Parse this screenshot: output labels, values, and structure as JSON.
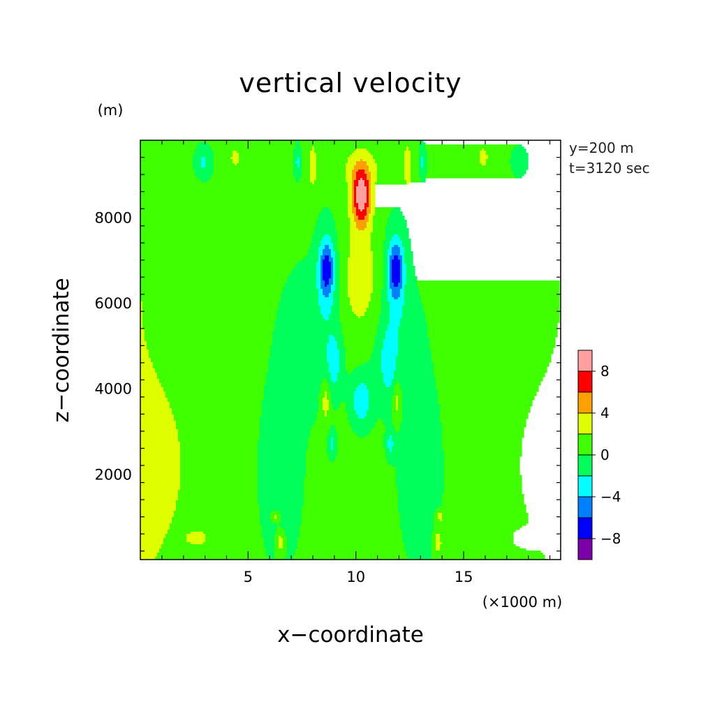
{
  "chart_data": {
    "type": "heatmap",
    "subtype": "filled-contour",
    "title": "vertical velocity",
    "xlabel": "x−coordinate",
    "ylabel": "z−coordinate",
    "x_unit": "(×1000 m)",
    "y_unit": "(m)",
    "annotations": [
      "y=200 m",
      "t=3120 sec"
    ],
    "xlim": [
      0,
      19.5
    ],
    "ylim": [
      0,
      9800
    ],
    "x_ticks": [
      5,
      10,
      15
    ],
    "x_tick_labels": [
      "5",
      "10",
      "15"
    ],
    "y_ticks": [
      2000,
      4000,
      6000,
      8000
    ],
    "y_tick_labels": [
      "2000",
      "4000",
      "6000",
      "8000"
    ],
    "colorbar": {
      "levels": [
        -10,
        -8,
        -6,
        -4,
        -2,
        0,
        2,
        4,
        6,
        8,
        10
      ],
      "labels": [
        "-8",
        "-4",
        "0",
        "4",
        "8"
      ],
      "label_values": [
        -8,
        -4,
        0,
        4,
        8
      ],
      "colors": [
        "#7a00a8",
        "#0000ff",
        "#0080ff",
        "#00ffff",
        "#00ff5a",
        "#40ff00",
        "#dfff00",
        "#ffa000",
        "#ff0000",
        "#ffa0a0"
      ]
    },
    "field": {
      "background": 0.5,
      "features": [
        {
          "kind": "band",
          "x": 0.0,
          "z": 0,
          "sx": 2.6,
          "sz": 9000,
          "amp": 1.5
        },
        {
          "kind": "band",
          "x": 19.5,
          "z": 0,
          "sx": 2.6,
          "sz": 9000,
          "amp": 1.5
        },
        {
          "kind": "blob",
          "x": 0.8,
          "z": 2200,
          "sx": 1.3,
          "sz": 1400,
          "amp": 1.2
        },
        {
          "kind": "blob",
          "x": 18.7,
          "z": 2200,
          "sx": 1.3,
          "sz": 1400,
          "amp": 1.2
        },
        {
          "kind": "blob",
          "x": 6.5,
          "z": 2000,
          "sx": 1.0,
          "sz": 2200,
          "amp": -1.6
        },
        {
          "kind": "blob",
          "x": 13.0,
          "z": 2000,
          "sx": 1.0,
          "sz": 2200,
          "amp": -1.6
        },
        {
          "kind": "blob",
          "x": 7.8,
          "z": 5200,
          "sx": 1.4,
          "sz": 1800,
          "amp": -1.4
        },
        {
          "kind": "blob",
          "x": 11.7,
          "z": 5200,
          "sx": 1.4,
          "sz": 1800,
          "amp": -1.4
        },
        {
          "kind": "blob",
          "x": 10.25,
          "z": 6500,
          "sx": 0.9,
          "sz": 1300,
          "amp": 3.0
        },
        {
          "kind": "blob",
          "x": 10.25,
          "z": 8500,
          "sx": 0.45,
          "sz": 700,
          "amp": 9.0
        },
        {
          "kind": "blob",
          "x": 10.25,
          "z": 9200,
          "sx": 1.6,
          "sz": 500,
          "amp": 1.5
        },
        {
          "kind": "blob",
          "x": 8.65,
          "z": 6800,
          "sx": 0.35,
          "sz": 650,
          "amp": -6.0
        },
        {
          "kind": "blob",
          "x": 11.85,
          "z": 6800,
          "sx": 0.35,
          "sz": 650,
          "amp": -6.0
        },
        {
          "kind": "blob",
          "x": 8.65,
          "z": 6500,
          "sx": 0.5,
          "sz": 1400,
          "amp": -2.0
        },
        {
          "kind": "blob",
          "x": 11.85,
          "z": 6500,
          "sx": 0.5,
          "sz": 1400,
          "amp": -2.0
        },
        {
          "kind": "blob",
          "x": 10.25,
          "z": 3700,
          "sx": 0.45,
          "sz": 550,
          "amp": -4.0
        },
        {
          "kind": "blob",
          "x": 9.0,
          "z": 4600,
          "sx": 0.35,
          "sz": 700,
          "amp": -3.0
        },
        {
          "kind": "blob",
          "x": 11.5,
          "z": 4600,
          "sx": 0.35,
          "sz": 700,
          "amp": -3.0
        },
        {
          "kind": "blob",
          "x": 8.6,
          "z": 3700,
          "sx": 0.2,
          "sz": 500,
          "amp": 3.0
        },
        {
          "kind": "blob",
          "x": 11.9,
          "z": 3700,
          "sx": 0.2,
          "sz": 500,
          "amp": 3.0
        },
        {
          "kind": "blob",
          "x": 8.9,
          "z": 2700,
          "sx": 0.18,
          "sz": 300,
          "amp": -3.0
        },
        {
          "kind": "blob",
          "x": 11.6,
          "z": 2700,
          "sx": 0.18,
          "sz": 300,
          "amp": -3.0
        },
        {
          "kind": "blob",
          "x": 2.9,
          "z": 9300,
          "sx": 0.45,
          "sz": 420,
          "amp": -3.2
        },
        {
          "kind": "blob",
          "x": 17.6,
          "z": 9300,
          "sx": 0.45,
          "sz": 420,
          "amp": -3.2
        },
        {
          "kind": "blob",
          "x": 7.3,
          "z": 9300,
          "sx": 0.15,
          "sz": 380,
          "amp": -3.0
        },
        {
          "kind": "blob",
          "x": 13.1,
          "z": 9300,
          "sx": 0.15,
          "sz": 380,
          "amp": -3.0
        },
        {
          "kind": "blob",
          "x": 8.0,
          "z": 9200,
          "sx": 0.18,
          "sz": 500,
          "amp": 3.0
        },
        {
          "kind": "blob",
          "x": 12.4,
          "z": 9200,
          "sx": 0.18,
          "sz": 500,
          "amp": 3.0
        },
        {
          "kind": "blob",
          "x": 4.4,
          "z": 9400,
          "sx": 0.2,
          "sz": 200,
          "amp": 3.0
        },
        {
          "kind": "blob",
          "x": 15.9,
          "z": 9400,
          "sx": 0.2,
          "sz": 200,
          "amp": 3.0
        },
        {
          "kind": "blob",
          "x": 6.5,
          "z": 400,
          "sx": 0.2,
          "sz": 300,
          "amp": 3.2
        },
        {
          "kind": "blob",
          "x": 13.8,
          "z": 400,
          "sx": 0.2,
          "sz": 300,
          "amp": 3.2
        },
        {
          "kind": "blob",
          "x": 6.3,
          "z": 1000,
          "sx": 0.2,
          "sz": 130,
          "amp": 3.0
        },
        {
          "kind": "blob",
          "x": 13.9,
          "z": 1000,
          "sx": 0.2,
          "sz": 130,
          "amp": 3.0
        },
        {
          "kind": "blob",
          "x": 2.7,
          "z": 500,
          "sx": 0.6,
          "sz": 220,
          "amp": 1.6
        },
        {
          "kind": "blob",
          "x": 17.8,
          "z": 500,
          "sx": 0.6,
          "sz": 220,
          "amp": 1.6
        }
      ]
    }
  }
}
